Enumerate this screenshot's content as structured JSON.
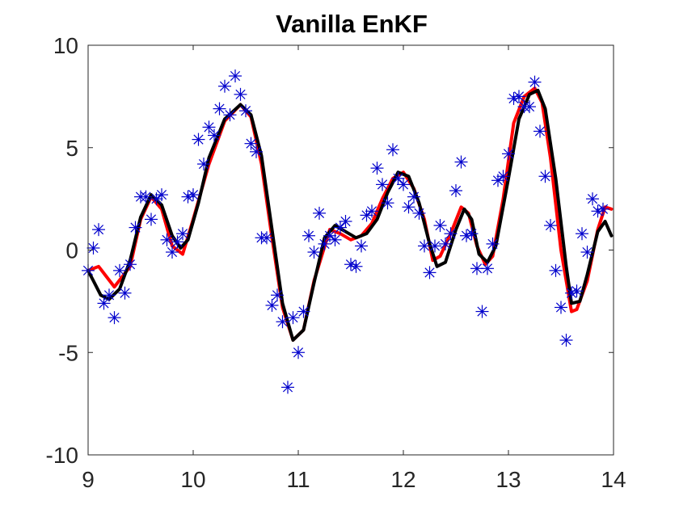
{
  "chart_data": {
    "type": "line",
    "title": "Vanilla EnKF",
    "xlabel": "",
    "ylabel": "",
    "xlim": [
      9,
      14
    ],
    "ylim": [
      -10,
      10
    ],
    "xticks": [
      9,
      10,
      11,
      12,
      13,
      14
    ],
    "yticks": [
      10,
      5,
      0,
      -5,
      -10
    ],
    "xtick_labels": [
      "9",
      "10",
      "11",
      "12",
      "13",
      "14"
    ],
    "ytick_labels": [
      "10",
      "5",
      "0",
      "-5",
      "-10"
    ],
    "grid": false,
    "legend": "none",
    "colors": {
      "truth": "#ff0000",
      "estimate": "#000000",
      "observations": "#0000cc",
      "axes": "#262626"
    },
    "series": [
      {
        "role": "truth",
        "style": "line",
        "points": [
          [
            9.0,
            -1.0
          ],
          [
            9.1,
            -0.8
          ],
          [
            9.25,
            -1.8
          ],
          [
            9.4,
            -0.8
          ],
          [
            9.5,
            1.5
          ],
          [
            9.6,
            2.6
          ],
          [
            9.7,
            2.0
          ],
          [
            9.8,
            0.2
          ],
          [
            9.9,
            -0.2
          ],
          [
            10.0,
            1.5
          ],
          [
            10.15,
            4.2
          ],
          [
            10.3,
            6.3
          ],
          [
            10.45,
            7.1
          ],
          [
            10.55,
            6.5
          ],
          [
            10.65,
            4.2
          ],
          [
            10.75,
            0.6
          ],
          [
            10.85,
            -2.8
          ],
          [
            10.95,
            -4.4
          ],
          [
            11.05,
            -3.9
          ],
          [
            11.15,
            -1.5
          ],
          [
            11.3,
            1.0
          ],
          [
            11.4,
            0.8
          ],
          [
            11.5,
            0.5
          ],
          [
            11.6,
            0.7
          ],
          [
            11.7,
            1.3
          ],
          [
            11.8,
            2.5
          ],
          [
            11.9,
            3.5
          ],
          [
            12.0,
            3.8
          ],
          [
            12.1,
            3.0
          ],
          [
            12.2,
            1.5
          ],
          [
            12.28,
            -0.5
          ],
          [
            12.35,
            -0.3
          ],
          [
            12.45,
            0.8
          ],
          [
            12.55,
            2.1
          ],
          [
            12.62,
            1.8
          ],
          [
            12.7,
            0.2
          ],
          [
            12.78,
            -0.7
          ],
          [
            12.85,
            -0.3
          ],
          [
            12.95,
            2.5
          ],
          [
            13.05,
            6.2
          ],
          [
            13.15,
            7.5
          ],
          [
            13.25,
            7.9
          ],
          [
            13.32,
            7.2
          ],
          [
            13.4,
            4.5
          ],
          [
            13.5,
            0.0
          ],
          [
            13.6,
            -3.0
          ],
          [
            13.65,
            -2.9
          ],
          [
            13.75,
            -1.5
          ],
          [
            13.85,
            1.0
          ],
          [
            13.92,
            2.1
          ],
          [
            13.98,
            2.0
          ]
        ]
      },
      {
        "role": "estimate",
        "style": "line",
        "points": [
          [
            9.0,
            -1.0
          ],
          [
            9.05,
            -1.5
          ],
          [
            9.12,
            -2.2
          ],
          [
            9.2,
            -2.4
          ],
          [
            9.3,
            -1.9
          ],
          [
            9.4,
            -0.5
          ],
          [
            9.5,
            1.6
          ],
          [
            9.6,
            2.7
          ],
          [
            9.7,
            2.2
          ],
          [
            9.8,
            0.7
          ],
          [
            9.88,
            0.1
          ],
          [
            9.95,
            0.5
          ],
          [
            10.05,
            2.3
          ],
          [
            10.15,
            4.5
          ],
          [
            10.3,
            6.4
          ],
          [
            10.45,
            7.1
          ],
          [
            10.55,
            6.6
          ],
          [
            10.65,
            4.6
          ],
          [
            10.75,
            1.0
          ],
          [
            10.85,
            -2.6
          ],
          [
            10.95,
            -4.4
          ],
          [
            11.05,
            -3.9
          ],
          [
            11.15,
            -1.6
          ],
          [
            11.25,
            0.6
          ],
          [
            11.35,
            1.2
          ],
          [
            11.45,
            0.9
          ],
          [
            11.55,
            0.6
          ],
          [
            11.65,
            0.8
          ],
          [
            11.75,
            1.5
          ],
          [
            11.85,
            2.8
          ],
          [
            11.95,
            3.8
          ],
          [
            12.05,
            3.6
          ],
          [
            12.15,
            2.3
          ],
          [
            12.25,
            0.3
          ],
          [
            12.32,
            -0.8
          ],
          [
            12.4,
            -0.6
          ],
          [
            12.5,
            1.0
          ],
          [
            12.58,
            2.0
          ],
          [
            12.65,
            1.5
          ],
          [
            12.72,
            -0.2
          ],
          [
            12.8,
            -0.6
          ],
          [
            12.88,
            0.2
          ],
          [
            13.0,
            3.5
          ],
          [
            13.1,
            6.4
          ],
          [
            13.2,
            7.6
          ],
          [
            13.28,
            7.8
          ],
          [
            13.35,
            6.9
          ],
          [
            13.45,
            3.5
          ],
          [
            13.55,
            -0.8
          ],
          [
            13.6,
            -2.6
          ],
          [
            13.68,
            -2.5
          ],
          [
            13.75,
            -1.2
          ],
          [
            13.85,
            0.9
          ],
          [
            13.92,
            1.4
          ],
          [
            13.98,
            0.7
          ]
        ]
      },
      {
        "role": "observations",
        "style": "star-markers",
        "points": [
          [
            9.0,
            -1.0
          ],
          [
            9.05,
            0.1
          ],
          [
            9.1,
            1.0
          ],
          [
            9.15,
            -2.6
          ],
          [
            9.2,
            -2.2
          ],
          [
            9.25,
            -3.3
          ],
          [
            9.3,
            -1.0
          ],
          [
            9.35,
            -2.1
          ],
          [
            9.4,
            -0.7
          ],
          [
            9.45,
            1.1
          ],
          [
            9.5,
            2.6
          ],
          [
            9.55,
            2.6
          ],
          [
            9.6,
            1.5
          ],
          [
            9.65,
            2.5
          ],
          [
            9.7,
            2.7
          ],
          [
            9.75,
            0.5
          ],
          [
            9.8,
            -0.1
          ],
          [
            9.85,
            0.4
          ],
          [
            9.9,
            0.8
          ],
          [
            9.95,
            2.6
          ],
          [
            10.0,
            2.7
          ],
          [
            10.05,
            5.4
          ],
          [
            10.1,
            4.2
          ],
          [
            10.15,
            6.0
          ],
          [
            10.2,
            5.6
          ],
          [
            10.25,
            6.9
          ],
          [
            10.3,
            8.0
          ],
          [
            10.35,
            6.6
          ],
          [
            10.4,
            8.5
          ],
          [
            10.45,
            7.6
          ],
          [
            10.5,
            6.8
          ],
          [
            10.55,
            5.2
          ],
          [
            10.6,
            4.8
          ],
          [
            10.65,
            0.6
          ],
          [
            10.7,
            0.6
          ],
          [
            10.75,
            -2.7
          ],
          [
            10.8,
            -2.2
          ],
          [
            10.85,
            -3.5
          ],
          [
            10.9,
            -6.7
          ],
          [
            10.95,
            -3.3
          ],
          [
            11.0,
            -5.0
          ],
          [
            11.05,
            -3.0
          ],
          [
            11.1,
            0.7
          ],
          [
            11.15,
            -0.1
          ],
          [
            11.2,
            1.8
          ],
          [
            11.25,
            0.3
          ],
          [
            11.3,
            0.7
          ],
          [
            11.35,
            0.5
          ],
          [
            11.4,
            1.1
          ],
          [
            11.45,
            1.4
          ],
          [
            11.5,
            -0.7
          ],
          [
            11.55,
            -0.8
          ],
          [
            11.6,
            0.2
          ],
          [
            11.65,
            1.7
          ],
          [
            11.7,
            1.9
          ],
          [
            11.75,
            4.0
          ],
          [
            11.8,
            3.2
          ],
          [
            11.85,
            2.3
          ],
          [
            11.9,
            4.9
          ],
          [
            11.95,
            3.5
          ],
          [
            12.0,
            3.2
          ],
          [
            12.05,
            2.1
          ],
          [
            12.1,
            2.6
          ],
          [
            12.15,
            1.8
          ],
          [
            12.2,
            0.2
          ],
          [
            12.25,
            -1.1
          ],
          [
            12.3,
            0.2
          ],
          [
            12.35,
            1.2
          ],
          [
            12.4,
            0.3
          ],
          [
            12.45,
            0.8
          ],
          [
            12.5,
            2.9
          ],
          [
            12.55,
            4.3
          ],
          [
            12.6,
            0.7
          ],
          [
            12.65,
            0.8
          ],
          [
            12.7,
            -0.9
          ],
          [
            12.75,
            -3.0
          ],
          [
            12.8,
            -0.9
          ],
          [
            12.85,
            0.3
          ],
          [
            12.9,
            3.4
          ],
          [
            12.95,
            3.6
          ],
          [
            13.0,
            4.7
          ],
          [
            13.05,
            7.4
          ],
          [
            13.1,
            7.5
          ],
          [
            13.15,
            7.0
          ],
          [
            13.2,
            7.0
          ],
          [
            13.25,
            8.2
          ],
          [
            13.3,
            5.8
          ],
          [
            13.35,
            3.6
          ],
          [
            13.4,
            1.2
          ],
          [
            13.45,
            -1.0
          ],
          [
            13.5,
            -2.8
          ],
          [
            13.55,
            -4.4
          ],
          [
            13.6,
            -2.1
          ],
          [
            13.65,
            -2.0
          ],
          [
            13.7,
            0.8
          ],
          [
            13.75,
            -0.1
          ],
          [
            13.8,
            2.5
          ],
          [
            13.85,
            1.9
          ],
          [
            13.9,
            2.0
          ]
        ]
      }
    ]
  }
}
